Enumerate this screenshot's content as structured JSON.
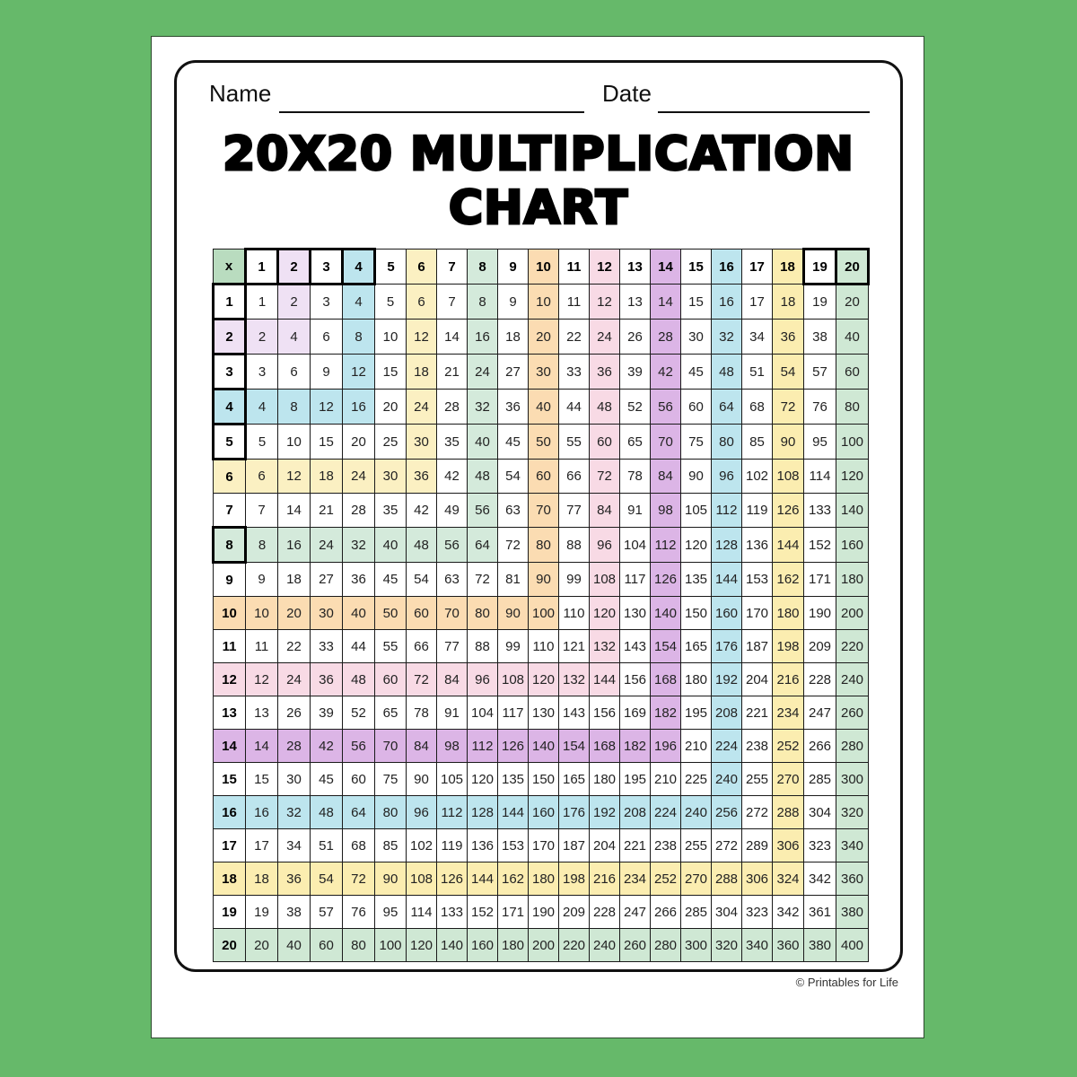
{
  "form": {
    "name_label": "Name",
    "date_label": "Date"
  },
  "title": {
    "line1": "20X20 MULTIPLICATION",
    "line2": "CHART"
  },
  "credit": "© Printables for Life",
  "table": {
    "corner": "x",
    "headers": [
      1,
      2,
      3,
      4,
      5,
      6,
      7,
      8,
      9,
      10,
      11,
      12,
      13,
      14,
      15,
      16,
      17,
      18,
      19,
      20
    ],
    "rows": [
      [
        1,
        2,
        3,
        4,
        5,
        6,
        7,
        8,
        9,
        10,
        11,
        12,
        13,
        14,
        15,
        16,
        17,
        18,
        19,
        20
      ],
      [
        2,
        4,
        6,
        8,
        10,
        12,
        14,
        16,
        18,
        20,
        22,
        24,
        26,
        28,
        30,
        32,
        34,
        36,
        38,
        40
      ],
      [
        3,
        6,
        9,
        12,
        15,
        18,
        21,
        24,
        27,
        30,
        33,
        36,
        39,
        42,
        45,
        48,
        51,
        54,
        57,
        60
      ],
      [
        4,
        8,
        12,
        16,
        20,
        24,
        28,
        32,
        36,
        40,
        44,
        48,
        52,
        56,
        60,
        64,
        68,
        72,
        76,
        80
      ],
      [
        5,
        10,
        15,
        20,
        25,
        30,
        35,
        40,
        45,
        50,
        55,
        60,
        65,
        70,
        75,
        80,
        85,
        90,
        95,
        100
      ],
      [
        6,
        12,
        18,
        24,
        30,
        36,
        42,
        48,
        54,
        60,
        66,
        72,
        78,
        84,
        90,
        96,
        102,
        108,
        114,
        120
      ],
      [
        7,
        14,
        21,
        28,
        35,
        42,
        49,
        56,
        63,
        70,
        77,
        84,
        91,
        98,
        105,
        112,
        119,
        126,
        133,
        140
      ],
      [
        8,
        16,
        24,
        32,
        40,
        48,
        56,
        64,
        72,
        80,
        88,
        96,
        104,
        112,
        120,
        128,
        136,
        144,
        152,
        160
      ],
      [
        9,
        18,
        27,
        36,
        45,
        54,
        63,
        72,
        81,
        90,
        99,
        108,
        117,
        126,
        135,
        144,
        153,
        162,
        171,
        180
      ],
      [
        10,
        20,
        30,
        40,
        50,
        60,
        70,
        80,
        90,
        100,
        110,
        120,
        130,
        140,
        150,
        160,
        170,
        180,
        190,
        200
      ],
      [
        11,
        22,
        33,
        44,
        55,
        66,
        77,
        88,
        99,
        110,
        121,
        132,
        143,
        154,
        165,
        176,
        187,
        198,
        209,
        220
      ],
      [
        12,
        24,
        36,
        48,
        60,
        72,
        84,
        96,
        108,
        120,
        132,
        144,
        156,
        168,
        180,
        192,
        204,
        216,
        228,
        240
      ],
      [
        13,
        26,
        39,
        52,
        65,
        78,
        91,
        104,
        117,
        130,
        143,
        156,
        169,
        182,
        195,
        208,
        221,
        234,
        247,
        260
      ],
      [
        14,
        28,
        42,
        56,
        70,
        84,
        98,
        112,
        126,
        140,
        154,
        168,
        182,
        196,
        210,
        224,
        238,
        252,
        266,
        280
      ],
      [
        15,
        30,
        45,
        60,
        75,
        90,
        105,
        120,
        135,
        150,
        165,
        180,
        195,
        210,
        225,
        240,
        255,
        270,
        285,
        300
      ],
      [
        16,
        32,
        48,
        64,
        80,
        96,
        112,
        128,
        144,
        160,
        176,
        192,
        208,
        224,
        240,
        256,
        272,
        288,
        304,
        320
      ],
      [
        17,
        34,
        51,
        68,
        85,
        102,
        119,
        136,
        153,
        170,
        187,
        204,
        221,
        238,
        255,
        272,
        289,
        306,
        323,
        340
      ],
      [
        18,
        36,
        54,
        72,
        90,
        108,
        126,
        144,
        162,
        180,
        198,
        216,
        234,
        252,
        270,
        288,
        306,
        324,
        342,
        360
      ],
      [
        19,
        38,
        57,
        76,
        95,
        114,
        133,
        152,
        171,
        190,
        209,
        228,
        247,
        266,
        285,
        304,
        323,
        342,
        361,
        380
      ],
      [
        20,
        40,
        60,
        80,
        100,
        120,
        140,
        160,
        180,
        200,
        220,
        240,
        260,
        280,
        300,
        320,
        340,
        360,
        380,
        400
      ]
    ],
    "colors": {
      "corner": "#b9dcbf",
      "2": "#efe1f4",
      "4": "#bde5ee",
      "6": "#fbf0c2",
      "8": "#d4eadb",
      "10": "#fbdcb2",
      "12": "#f8dae5",
      "14": "#dcb5e6",
      "16": "#bde5ee",
      "18": "#fbedb0",
      "20": "#cfe8d4"
    }
  }
}
